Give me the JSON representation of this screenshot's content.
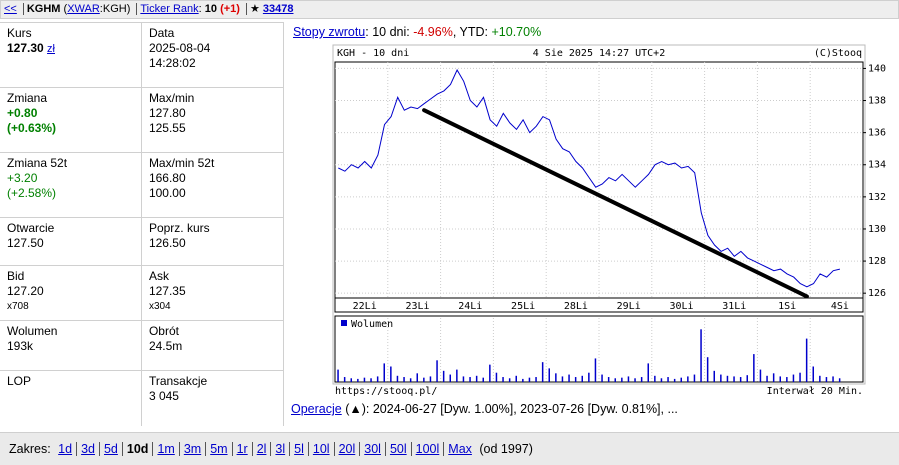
{
  "header": {
    "back": "<<",
    "ticker": "KGHM",
    "exchange_open": "(",
    "exchange": "XWAR",
    "exchange_rest": ":KGH)",
    "rank_link": "Ticker Rank",
    "rank_sep": ":",
    "rank": "10",
    "rank_change": "(+1)",
    "star": "★",
    "star_count": "33478"
  },
  "quote": [
    [
      {
        "label": "Kurs",
        "lines": [
          "127.30"
        ],
        "unit": "zł",
        "bold": true
      },
      {
        "label": "Data",
        "lines": [
          "2025-08-04",
          "14:28:02"
        ]
      }
    ],
    [
      {
        "label": "Zmiana",
        "lines": [
          "+0.80",
          "(+0.63%)"
        ],
        "color": "#008000",
        "bold": true
      },
      {
        "label": "Max/min",
        "lines": [
          "127.80",
          "125.55"
        ]
      }
    ],
    [
      {
        "label": "Zmiana 52t",
        "lines": [
          "+3.20",
          "(+2.58%)"
        ],
        "color": "#008000"
      },
      {
        "label": "Max/min 52t",
        "lines": [
          "166.80",
          "100.00"
        ]
      }
    ],
    [
      {
        "label": "Otwarcie",
        "lines": [
          "127.50"
        ]
      },
      {
        "label": "Poprz. kurs",
        "lines": [
          "126.50"
        ]
      }
    ],
    [
      {
        "label": "Bid",
        "lines": [
          "127.20"
        ],
        "small": "x708"
      },
      {
        "label": "Ask",
        "lines": [
          "127.35"
        ],
        "small": "x304"
      }
    ],
    [
      {
        "label": "Wolumen",
        "lines": [
          "193k"
        ]
      },
      {
        "label": "Obrót",
        "lines": [
          "24.5m"
        ]
      }
    ],
    [
      {
        "label": "LOP",
        "lines": []
      },
      {
        "label": "Transakcje",
        "lines": [
          "3 045"
        ]
      }
    ]
  ],
  "returns": {
    "link": "Stopy zwrotu",
    "text1": ": 10 dni: ",
    "ten_day": "-4.96%",
    "text2": ", YTD: ",
    "ytd": "+10.70%"
  },
  "chart_data": {
    "type": "line",
    "title": "KGH - 10 dni",
    "subtitle": "4 Sie 2025 14:27 UTC+2",
    "credit": "(C)Stooq",
    "source": "https://stooq.pl/",
    "interval": "Interwał 20 Min.",
    "categories": [
      null,
      null,
      null,
      null,
      "22Li",
      null,
      null,
      null,
      null,
      null,
      null,
      null,
      "23Li",
      null,
      null,
      null,
      null,
      null,
      null,
      null,
      "24Li",
      null,
      null,
      null,
      null,
      null,
      null,
      null,
      "25Li",
      null,
      null,
      null,
      null,
      null,
      null,
      null,
      "28Li",
      null,
      null,
      null,
      null,
      null,
      null,
      null,
      "29Li",
      null,
      null,
      null,
      null,
      null,
      null,
      null,
      "30Li",
      null,
      null,
      null,
      null,
      null,
      null,
      null,
      "31Li",
      null,
      null,
      null,
      null,
      null,
      null,
      null,
      "1Si",
      null,
      null,
      null,
      null,
      null,
      null,
      null,
      "4Si",
      null,
      null,
      null
    ],
    "series": [
      {
        "name": "KGH",
        "color": "#0000cc",
        "values": [
          133.8,
          133.6,
          134.0,
          133.8,
          134.2,
          133.8,
          134.6,
          136.5,
          137.0,
          138.2,
          137.4,
          137.6,
          137.5,
          137.8,
          138.1,
          138.4,
          138.6,
          139.0,
          139.9,
          139.2,
          138.0,
          137.6,
          138.2,
          136.8,
          136.4,
          137.2,
          136.6,
          136.2,
          136.8,
          136.0,
          136.4,
          137.0,
          136.8,
          135.6,
          135.0,
          134.8,
          134.2,
          133.8,
          133.2,
          132.6,
          132.8,
          133.2,
          133.0,
          133.4,
          133.0,
          132.6,
          133.0,
          133.4,
          134.0,
          134.2,
          134.0,
          134.1,
          133.8,
          133.9,
          133.5,
          131.0,
          129.6,
          129.0,
          128.6,
          128.8,
          128.3,
          128.6,
          128.2,
          128.0,
          127.8,
          127.6,
          127.4,
          127.5,
          127.2,
          127.0,
          126.6,
          126.4,
          126.6,
          127.2,
          127.0,
          127.4,
          127.5,
          null,
          null,
          null
        ]
      }
    ],
    "ylim": [
      125.7,
      140.4
    ],
    "yticks": [
      126,
      128,
      130,
      132,
      134,
      136,
      138,
      140
    ],
    "grid": true,
    "trendline": {
      "index": [
        13,
        71
      ],
      "values": [
        137.4,
        125.8
      ],
      "color": "#000000"
    },
    "volume": {
      "name": "Wolumen",
      "color": "#0000cc",
      "ylim": [
        0,
        100
      ],
      "values": [
        20,
        8,
        6,
        5,
        7,
        6,
        9,
        30,
        25,
        10,
        8,
        6,
        14,
        7,
        9,
        35,
        18,
        12,
        20,
        9,
        8,
        10,
        7,
        28,
        15,
        8,
        6,
        10,
        5,
        7,
        8,
        32,
        22,
        14,
        9,
        12,
        8,
        10,
        15,
        38,
        12,
        8,
        6,
        7,
        9,
        6,
        8,
        30,
        10,
        6,
        8,
        5,
        7,
        9,
        12,
        85,
        40,
        18,
        12,
        10,
        9,
        8,
        11,
        45,
        20,
        10,
        14,
        9,
        8,
        12,
        15,
        70,
        25,
        10,
        8,
        9,
        6,
        null,
        null,
        null
      ]
    }
  },
  "operations": {
    "link": "Operacje",
    "open": " (",
    "arrow": "▲",
    "text": "): 2024-06-27 [Dyw. 1.00%], 2023-07-26 [Dyw. 0.81%], ..."
  },
  "range": {
    "label": "Zakres:",
    "items": [
      "1d",
      "3d",
      "5d",
      "10d",
      "1m",
      "3m",
      "5m",
      "1r",
      "2l",
      "3l",
      "5l",
      "10l",
      "20l",
      "30l",
      "50l",
      "100l",
      "Max"
    ],
    "active": 3,
    "since": "(od 1997)"
  }
}
